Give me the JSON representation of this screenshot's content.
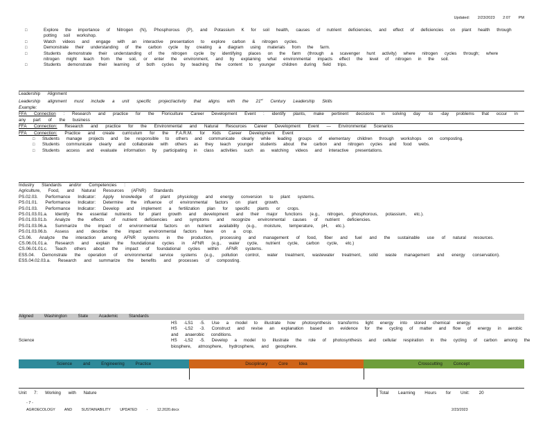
{
  "header": {
    "updated_label": "Updated:",
    "updated_date": "2/23/2023",
    "updated_time": "2:07 PM"
  },
  "activities": [
    "Explore the importance of Nitrogen (N), Phosphorous (P), and Potassium K for soil health, causes of nutrient deficiencies, and effect of deficiencies on plant health through potting soil workshop.",
    "Watch videos and engage with an interactive presentation to explore carbon & nitrogen cycles.",
    "Demonstrate their understanding of the carbon cycle by creating a diagram using materials from the farm.",
    "Students demonstrate their understanding of the nitrogen cycle by identifying places on the farm (through a scavenger hunt activity) where nitrogen cycles through; where nitrogen might leach from the soil, or enter the environment, and by explaining what environmental impacts effect the level of nitrogen in the soil.",
    "Students demonstrate their learning of both cycles by teaching the content to younger children during field trips."
  ],
  "leadership": {
    "heading": "Leadership Alignment",
    "prompt_pre": "Leadership alignment must include a unit specific project/activity that aligns with the 21",
    "prompt_sup": "st",
    "prompt_post": "Century Leadership Skills",
    "example": "Example:",
    "ffa1_label": "FFA Connection",
    "ffa1_text": ": Research and practice for the Floriculture Career Development Event : identify plants, make pertinent decisions in solving day -to -day problems that occur in any part of the business",
    "ffa2_label": "FFA Connection:",
    "ffa2_text": "Research and practice for the Environmental and Natural Resources Career Development Event — Environmental Scenarios",
    "ffa3_label": "FFA Connection:",
    "ffa3_text": "Practice and create curriculum for the F.A.R.M. for Kids Career Development Event",
    "ffa3_items": [
      "Students manage projects and be responsible to others and communicate clearly while leading groups of elementary children through workshops on composting.",
      "Students communicate clearly and collaborate with others as they teach younger students about the carbon and nitrogen cycles and food webs.",
      "Students access and evaluate information by participating in class activities such as watching videos and interactive presentations."
    ]
  },
  "industry": {
    "heading": "Industry Standards and/or Competencies :",
    "subheading": "Agriculture, Food, and Natural Resources (AFNR) Standards",
    "standards": [
      "PS.02.03. Performance Indicator: Apply knowledge of plant physiology and energy conversion to plant systems.",
      "PS.01.01. Performance Indicator: Determine the influence of environmental factors on plant growth.",
      "PS.01.03. Performance Indicator: Develop and implement a fertilization plan for specific plants or crops.",
      "PS.01.03.01.a. Identify the essential nutrients for plant growth and development and their major functions (e.g., nitrogen, phosphorous, potassium, etc.).",
      "PS.01.03.01.b. Analyze the effects of nutrient deficiencies and symptoms and recognize environmental causes of nutrient deficiencies.",
      "PS.01.03.06.a. Summarize the impact of environmental factors on nutrient availability (e.g., moisture, temperature, pH, etc.).",
      "PS.01.03.06.b. Assess and describe the impact environmental factors have on a crop.",
      "CS.06. Analyze the interaction among AFNR systems in the production, processing and management of food, fiber and fuel and the sustainable use of natural resources.",
      "CS.06.01.01.a. Research and explain the foundational cycles in AFNR (e.g., water cycle, nutrient cycle, carbon cycle, etc.)",
      "CS.06.01.01.c. Teach others about the impact of foundational cycles within AFNR systems.",
      "ESS.04. Demonstrate the operation of environmental service systems (e.g., pollution control, water treatment, wastewater treatment, solid waste management and energy conservation).",
      "ESS.04.02.03.a. Research and summarize the benefits and processes of composting."
    ]
  },
  "aligned": {
    "heading": "Aligned Washington State Academic Standards"
  },
  "science": {
    "label": "Science",
    "standards": [
      "HS -LS1 -5. Use a model to illustrate how photosynthesis transforms light energy into stored chemical energy.",
      "HS -LS2 -3. Construct and revise an explanation based on evidence for the cycling of matter and flow of energy in aerobic and anaerobic conditions.",
      "HS -LS2 -5. Develop a model to illustrate the role of photosynthesis and cellular respiration in the cycling of carbon among the biosphere, atmosphere, hydrosphere, and geosphere."
    ]
  },
  "dimensions": {
    "practices": "Science and Engineering Practice",
    "core": "Disciplinary Core Idea",
    "crosscutting": "Crosscutting Concept",
    "colors": {
      "practices": "#2e8a9a",
      "core": "#cf6419",
      "crosscutting": "#6e9e3b"
    }
  },
  "unit": {
    "title": "Unit 7: Working with Nature",
    "hours_label": "Total Learning Hours for Unit:",
    "hours": "20"
  },
  "footer": {
    "page": "- 7 -",
    "doc": "AGROECOLOGY AND SUSTAINABILITY UPDATED - 12.2020.docx",
    "date": "2/23/2023"
  }
}
